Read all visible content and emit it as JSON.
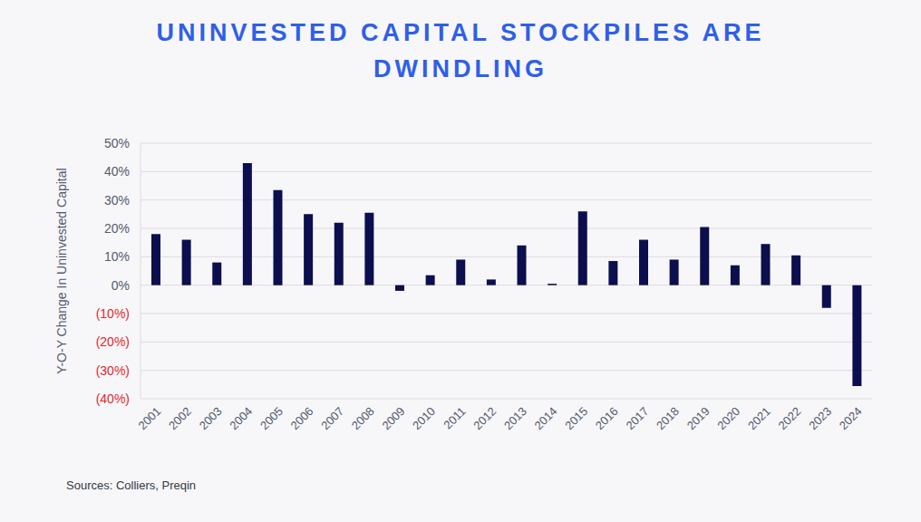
{
  "chart_data": {
    "type": "bar",
    "title": "UNINVESTED CAPITAL STOCKPILES ARE DWINDLING",
    "y_label": "Y-O-Y Change In Uninvested Capital",
    "source": "Sources: Colliers, Preqin",
    "categories": [
      "2001",
      "2002",
      "2003",
      "2004",
      "2005",
      "2006",
      "2007",
      "2008",
      "2009",
      "2010",
      "2011",
      "2012",
      "2013",
      "2014",
      "2015",
      "2016",
      "2017",
      "2018",
      "2019",
      "2020",
      "2021",
      "2022",
      "2023",
      "2024"
    ],
    "values": [
      18,
      16,
      8,
      43,
      33.5,
      25,
      22,
      25.5,
      -2,
      3.5,
      9,
      2,
      14,
      0.5,
      26,
      8.5,
      16,
      9,
      20.5,
      7,
      14.5,
      10.5,
      -8,
      -35.5
    ],
    "color": "#0b0f4e",
    "ylim": [
      -40,
      50
    ],
    "yticks": [
      {
        "value": 50,
        "label": "50%"
      },
      {
        "value": 40,
        "label": "40%"
      },
      {
        "value": 30,
        "label": "30%"
      },
      {
        "value": 20,
        "label": "20%"
      },
      {
        "value": 10,
        "label": "10%"
      },
      {
        "value": 0,
        "label": "0%"
      },
      {
        "value": -10,
        "label": "(10%)"
      },
      {
        "value": -20,
        "label": "(20%)"
      },
      {
        "value": -30,
        "label": "(30%)"
      },
      {
        "value": -40,
        "label": "(40%)"
      }
    ],
    "grid": true
  }
}
